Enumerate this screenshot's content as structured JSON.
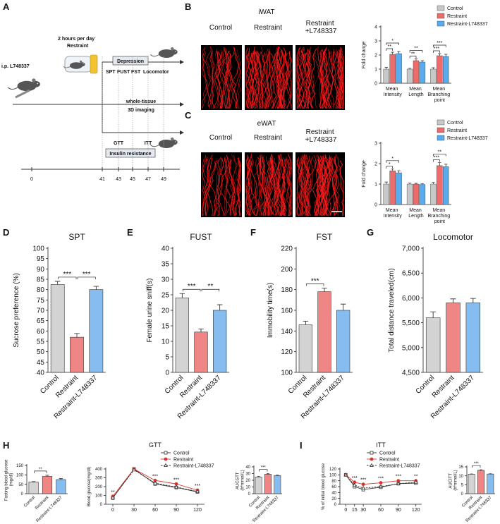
{
  "panel_letters": [
    "A",
    "B",
    "C",
    "D",
    "E",
    "F",
    "G",
    "H",
    "I"
  ],
  "schematic": {
    "injection": "i.p.  L748337",
    "schedule": "2 hours per day",
    "stress": "Restraint",
    "depression": "Depression",
    "tests": [
      "SPT",
      "FUST",
      "FST",
      "Locomotor"
    ],
    "imaging": "whole-tissue",
    "imaging2": "3D imaging",
    "metabolic_tests": [
      "GTT",
      "ITT"
    ],
    "insulin": "Insulin resistance",
    "days": [
      0,
      41,
      43,
      45,
      47,
      49
    ]
  },
  "images": [
    {
      "title": "iWAT",
      "labels": [
        "Control",
        "Restraint",
        "Restraint +L748337"
      ]
    },
    {
      "title": "eWAT",
      "labels": [
        "Control",
        "Restraint",
        "Restraint +L748337"
      ]
    }
  ],
  "chart_data": [
    {
      "type": "bar",
      "categories": [
        "Mean Intensity",
        "Mean Length",
        "Mean Branching point"
      ],
      "series": [
        {
          "name": "Control",
          "color": "#c8c8c8",
          "values": [
            1.0,
            1.0,
            1.0
          ],
          "errors": [
            0.12,
            0.06,
            0.1
          ]
        },
        {
          "name": "Restraint",
          "color": "#ee6b6b",
          "values": [
            2.05,
            1.6,
            1.95
          ],
          "errors": [
            0.15,
            0.12,
            0.15
          ]
        },
        {
          "name": "Restraint-L748337",
          "color": "#5aabee",
          "values": [
            2.1,
            1.5,
            1.9
          ],
          "errors": [
            0.15,
            0.1,
            0.15
          ]
        }
      ],
      "y_label": "Fold change",
      "ylim": [
        0,
        4
      ],
      "yticks": [
        0,
        1,
        2,
        3,
        4
      ],
      "annotations": [
        "**",
        "*",
        "**",
        "**",
        "***",
        "***"
      ],
      "legend": "top-right"
    },
    {
      "type": "bar",
      "categories": [
        "Mean Intensity",
        "Mean Length",
        "Mean Branching point"
      ],
      "series": [
        {
          "name": "Control",
          "color": "#c8c8c8",
          "values": [
            1.0,
            1.0,
            1.0
          ],
          "errors": [
            0.1,
            0.05,
            0.08
          ]
        },
        {
          "name": "Restraint",
          "color": "#ee6b6b",
          "values": [
            1.65,
            1.0,
            1.9
          ],
          "errors": [
            0.08,
            0.04,
            0.15
          ]
        },
        {
          "name": "Restraint-L748337",
          "color": "#5aabee",
          "values": [
            1.55,
            0.98,
            1.85
          ],
          "errors": [
            0.1,
            0.04,
            0.12
          ]
        }
      ],
      "y_label": "Fold change",
      "ylim": [
        0,
        3
      ],
      "yticks": [
        0,
        1,
        2,
        3
      ],
      "annotations": [
        "*",
        "*",
        "***",
        "**"
      ],
      "legend": "top-right"
    },
    {
      "type": "bar",
      "title": "SPT",
      "categories": [
        "Control",
        "Restraint",
        "Restraint-L748337"
      ],
      "values": [
        82.5,
        57,
        80
      ],
      "errors": [
        1.5,
        1.8,
        1.6
      ],
      "colors": [
        "#d3d3d3",
        "#f08585",
        "#86bdf0"
      ],
      "y_label": "Sucrose preference  (%)",
      "ylim": [
        40,
        100
      ],
      "yticks": [
        40,
        45,
        50,
        55,
        60,
        65,
        70,
        75,
        80,
        85,
        90,
        95,
        100
      ],
      "annotations": [
        "***",
        "***"
      ]
    },
    {
      "type": "bar",
      "title": "FUST",
      "categories": [
        "Control",
        "Restraint",
        "Restraint-L748337"
      ],
      "values": [
        24,
        13,
        20
      ],
      "errors": [
        1.4,
        1.0,
        1.8
      ],
      "colors": [
        "#d3d3d3",
        "#f08585",
        "#86bdf0"
      ],
      "y_label": "Female urine sniff(s)",
      "ylim": [
        0,
        40
      ],
      "yticks": [
        0,
        5,
        10,
        15,
        20,
        25,
        30,
        35,
        40
      ],
      "annotations": [
        "***",
        "**"
      ]
    },
    {
      "type": "bar",
      "title": "FST",
      "categories": [
        "Control",
        "Restraint",
        "Restraint-L748337"
      ],
      "values": [
        146,
        178,
        160
      ],
      "errors": [
        3.5,
        3.5,
        6
      ],
      "colors": [
        "#d3d3d3",
        "#f08585",
        "#86bdf0"
      ],
      "y_label": "Immobility time(s)",
      "ylim": [
        100,
        220
      ],
      "yticks": [
        100,
        120,
        140,
        160,
        180,
        200,
        220
      ],
      "annotations": [
        "***"
      ]
    },
    {
      "type": "bar",
      "title": "Locomotor",
      "categories": [
        "Control",
        "Restraint",
        "Restraint-L748337"
      ],
      "values": [
        5600,
        5900,
        5900
      ],
      "errors": [
        120,
        80,
        90
      ],
      "colors": [
        "#d3d3d3",
        "#f08585",
        "#86bdf0"
      ],
      "y_label": "Total distance traveled(cm)",
      "ylim": [
        4500,
        7000
      ],
      "yticks": [
        {
          "value": 4500,
          "label": "4,500"
        },
        {
          "value": 5000,
          "label": "5,000"
        },
        {
          "value": 5500,
          "label": "5,500"
        },
        {
          "value": 6000,
          "label": "6,000"
        },
        {
          "value": 6500,
          "label": "6,500"
        },
        {
          "value": 7000,
          "label": "7,000"
        }
      ]
    },
    {
      "type": "bar",
      "categories": [
        "Control",
        "Restraint",
        "Restraint-L748337"
      ],
      "values": [
        62,
        92,
        75
      ],
      "errors": [
        2,
        6,
        5
      ],
      "colors": [
        "#d3d3d3",
        "#f08585",
        "#86bdf0"
      ],
      "y_label": "Fasting blood glucose (mg/dl)",
      "ylim": [
        0,
        150
      ],
      "yticks": [
        0,
        50,
        100,
        150
      ],
      "annotations": [
        "**"
      ]
    },
    {
      "type": "line",
      "title": "GTT",
      "x": [
        0,
        30,
        60,
        90,
        120
      ],
      "xlim": [
        -10,
        130
      ],
      "xticks": [
        0,
        30,
        60,
        90,
        120
      ],
      "series": [
        {
          "name": "Control",
          "color": "#333333",
          "marker": "square",
          "filled": false,
          "dashed": false,
          "values": [
            70,
            400,
            230,
            190,
            140
          ]
        },
        {
          "name": "Restraint",
          "color": "#d9342b",
          "marker": "circle",
          "filled": true,
          "dashed": false,
          "values": [
            90,
            400,
            270,
            230,
            160
          ]
        },
        {
          "name": "Restraint-L748337",
          "color": "#333333",
          "marker": "triangle",
          "filled": false,
          "dashed": true,
          "values": [
            75,
            390,
            240,
            195,
            145
          ]
        }
      ],
      "y_label": "Blood glucose(mg/dl)",
      "ylim": [
        0,
        400
      ],
      "yticks": [
        0,
        100,
        200,
        300,
        400
      ],
      "annotations": [
        "**",
        "***",
        "***",
        "***"
      ],
      "legend": "top-right"
    },
    {
      "type": "bar",
      "categories": [
        "Control",
        "Restraint",
        "Restraint-L748337"
      ],
      "values": [
        25,
        29,
        27
      ],
      "errors": [
        0.8,
        0.8,
        0.7
      ],
      "colors": [
        "#d3d3d3",
        "#f08585",
        "#86bdf0"
      ],
      "y_label": "AUCGTT (h*mmol/L)",
      "ylim": [
        0,
        40
      ],
      "yticks": [
        0,
        10,
        20,
        30,
        40
      ],
      "annotations": [
        "***"
      ]
    },
    {
      "type": "line",
      "title": "ITT",
      "x": [
        0,
        15,
        30,
        60,
        90,
        120
      ],
      "xlim": [
        -10,
        130
      ],
      "xticks": [
        0,
        15,
        30,
        60,
        90,
        120
      ],
      "series": [
        {
          "name": "Control",
          "color": "#333333",
          "marker": "square",
          "filled": false,
          "dashed": false,
          "values": [
            100,
            60,
            50,
            58,
            70,
            72
          ]
        },
        {
          "name": "Restraint",
          "color": "#d9342b",
          "marker": "circle",
          "filled": true,
          "dashed": false,
          "values": [
            100,
            75,
            68,
            73,
            80,
            80
          ]
        },
        {
          "name": "Restraint-L748337",
          "color": "#333333",
          "marker": "triangle",
          "filled": false,
          "dashed": true,
          "values": [
            100,
            65,
            55,
            60,
            70,
            75
          ]
        }
      ],
      "y_label": "% of initial blood glucose",
      "ylim": [
        0,
        120
      ],
      "yticks": [
        0,
        20,
        40,
        60,
        80,
        100,
        120
      ],
      "annotations": [
        "***",
        "***",
        "***",
        "***",
        "**"
      ],
      "legend": "top-left"
    },
    {
      "type": "bar",
      "categories": [
        "Control",
        "Restraint",
        "Restraint-L748337"
      ],
      "values": [
        10.9,
        13.1,
        11.0
      ],
      "errors": [
        0.15,
        0.25,
        0.15
      ],
      "colors": [
        "#d3d3d3",
        "#f08585",
        "#86bdf0"
      ],
      "y_label": "AUCITT (h*mmol/L)",
      "ylim": [
        0,
        15
      ],
      "yticks": [
        0,
        5,
        10,
        15
      ],
      "annotations": [
        "***"
      ]
    }
  ]
}
